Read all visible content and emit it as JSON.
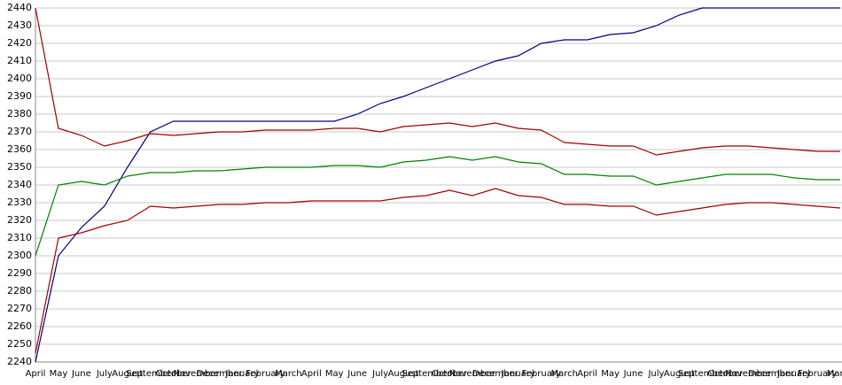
{
  "chart_data": {
    "type": "line",
    "categories": [
      "April",
      "May",
      "June",
      "July",
      "August",
      "September",
      "October",
      "November",
      "December",
      "January",
      "February",
      "March",
      "April",
      "May",
      "June",
      "July",
      "August",
      "September",
      "October",
      "November",
      "December",
      "January",
      "February",
      "March",
      "April",
      "May",
      "June",
      "July",
      "August",
      "September",
      "October",
      "November",
      "December",
      "January",
      "February",
      "March"
    ],
    "series": [
      {
        "color": "#000080",
        "values": [
          2240,
          2300,
          2316,
          2328,
          2350,
          2370,
          2376,
          2376,
          2376,
          2376,
          2376,
          2376,
          2376,
          2376,
          2380,
          2386,
          2390,
          2395,
          2400,
          2405,
          2410,
          2413,
          2420,
          2422,
          2422,
          2425,
          2426,
          2430,
          2436,
          2440,
          2440,
          2440,
          2440,
          2440,
          2440,
          2440
        ]
      },
      {
        "color": "#a00000",
        "values": [
          2440,
          2372,
          2368,
          2362,
          2365,
          2369,
          2368,
          2369,
          2370,
          2370,
          2371,
          2371,
          2371,
          2372,
          2372,
          2370,
          2373,
          2374,
          2375,
          2373,
          2375,
          2372,
          2371,
          2364,
          2363,
          2362,
          2362,
          2357,
          2359,
          2361,
          2362,
          2362,
          2361,
          2360,
          2359,
          2359
        ]
      },
      {
        "color": "#008000",
        "values": [
          2300,
          2340,
          2342,
          2340,
          2345,
          2347,
          2347,
          2348,
          2348,
          2349,
          2350,
          2350,
          2350,
          2351,
          2351,
          2350,
          2353,
          2354,
          2356,
          2354,
          2356,
          2353,
          2352,
          2346,
          2346,
          2345,
          2345,
          2340,
          2342,
          2344,
          2346,
          2346,
          2346,
          2344,
          2343,
          2343
        ]
      },
      {
        "color": "#a00000",
        "values": [
          2245,
          2310,
          2313,
          2317,
          2320,
          2328,
          2327,
          2328,
          2329,
          2329,
          2330,
          2330,
          2331,
          2331,
          2331,
          2331,
          2333,
          2334,
          2337,
          2334,
          2338,
          2334,
          2333,
          2329,
          2329,
          2328,
          2328,
          2323,
          2325,
          2327,
          2329,
          2330,
          2330,
          2329,
          2328,
          2327
        ]
      }
    ],
    "ylim": [
      2240,
      2440
    ],
    "yticks": [
      2240,
      2250,
      2260,
      2270,
      2280,
      2290,
      2300,
      2310,
      2320,
      2330,
      2340,
      2350,
      2360,
      2370,
      2380,
      2390,
      2400,
      2410,
      2420,
      2430,
      2440
    ],
    "grid": true
  }
}
